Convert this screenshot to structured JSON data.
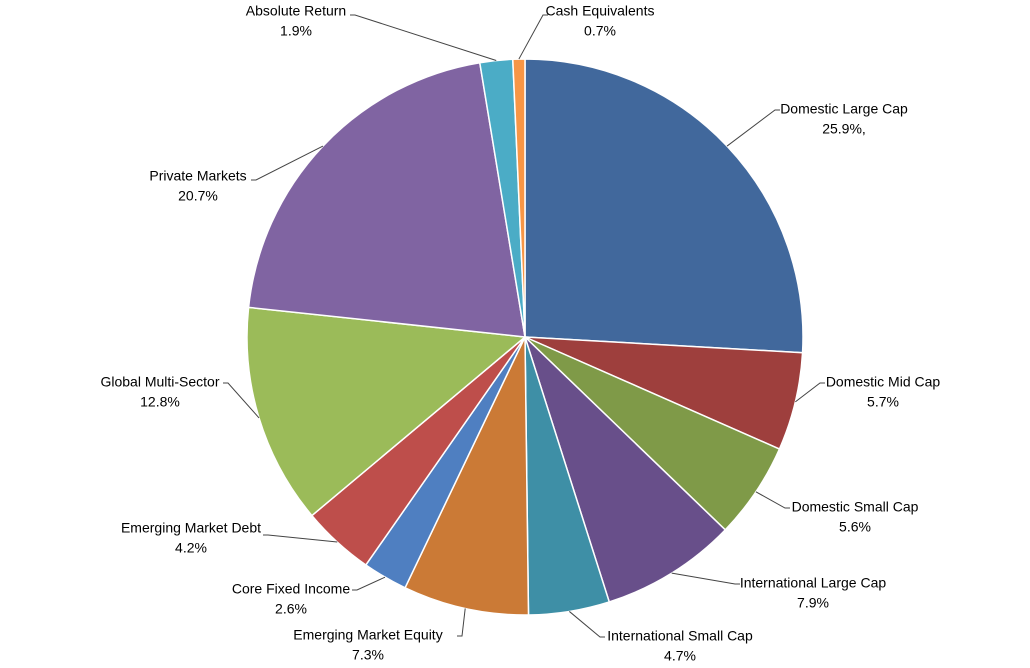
{
  "chart_data": {
    "type": "pie",
    "categories": [
      "Domestic Large Cap",
      "Domestic Mid Cap",
      "Domestic Small Cap",
      "International Large Cap",
      "International Small Cap",
      "Emerging Market Equity",
      "Core Fixed Income",
      "Emerging Market Debt",
      "Global Multi-Sector",
      "Private Markets",
      "Absolute Return",
      "Cash Equivalents"
    ],
    "values": [
      25.9,
      5.7,
      5.6,
      7.9,
      4.7,
      7.3,
      2.6,
      4.2,
      12.8,
      20.7,
      1.9,
      0.7
    ],
    "value_labels": [
      "25.9%,",
      "5.7%",
      "5.6%",
      "7.9%",
      "4.7%",
      "7.3%",
      "2.6%",
      "4.2%",
      "12.8%",
      "20.7%",
      "1.9%",
      "0.7%"
    ],
    "colors": [
      "#41689c",
      "#9e3f3d",
      "#7f9a48",
      "#684f8a",
      "#3e8fa6",
      "#cb7a36",
      "#4f7fc1",
      "#be4e4b",
      "#9bbb59",
      "#8064a2",
      "#4bacc6",
      "#f79646"
    ]
  }
}
